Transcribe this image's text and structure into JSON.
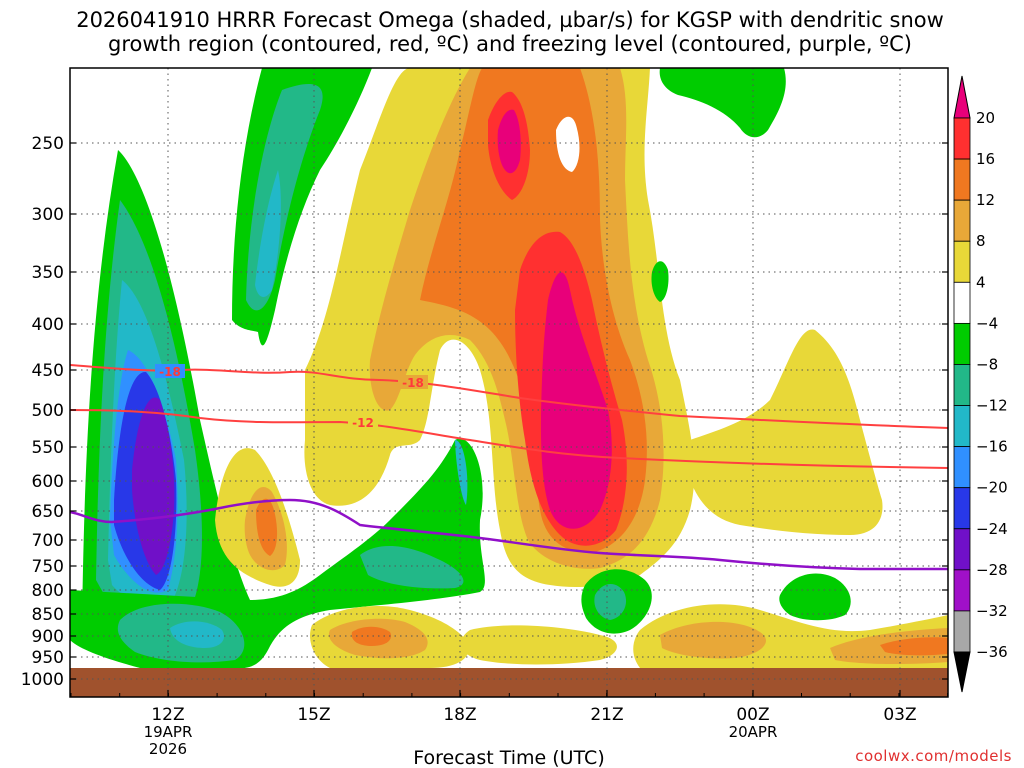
{
  "chart_data": {
    "type": "heatmap",
    "title_line1": "2026041910 HRRR Forecast Omega (shaded, µbar/s) for KGSP with dendritic snow",
    "title_line2": "growth region (contoured, red, ºC) and freezing level (contoured, purple, ºC)",
    "xlabel": "Forecast Time (UTC)",
    "credit": "coolwx.com/models",
    "y_ticks": [
      "250",
      "300",
      "350",
      "400",
      "450",
      "500",
      "550",
      "600",
      "650",
      "700",
      "750",
      "800",
      "850",
      "900",
      "950",
      "1000"
    ],
    "x_ticks": [
      {
        "label": "12Z",
        "sub1": "19APR",
        "sub2": "2026"
      },
      {
        "label": "15Z",
        "sub1": "",
        "sub2": ""
      },
      {
        "label": "18Z",
        "sub1": "",
        "sub2": ""
      },
      {
        "label": "21Z",
        "sub1": "",
        "sub2": ""
      },
      {
        "label": "00Z",
        "sub1": "20APR",
        "sub2": ""
      },
      {
        "label": "03Z",
        "sub1": "",
        "sub2": ""
      }
    ],
    "colorbar_labels": [
      "20",
      "16",
      "12",
      "8",
      "4",
      "−4",
      "−8",
      "−12",
      "−16",
      "−20",
      "−24",
      "−28",
      "−32",
      "−36"
    ],
    "colorbar_colors": [
      "#e8007a",
      "#ff3030",
      "#f07820",
      "#e8a838",
      "#e8d838",
      "#ffffff",
      "#00cc00",
      "#22b888",
      "#22b8c8",
      "#3090ff",
      "#2838e8",
      "#7010c8",
      "#a010c8",
      "#a8a8a8",
      "#000000"
    ],
    "contour_labels": [
      "-18",
      "-18",
      "-12"
    ],
    "grid": true,
    "ground_color": "#a0522d"
  }
}
